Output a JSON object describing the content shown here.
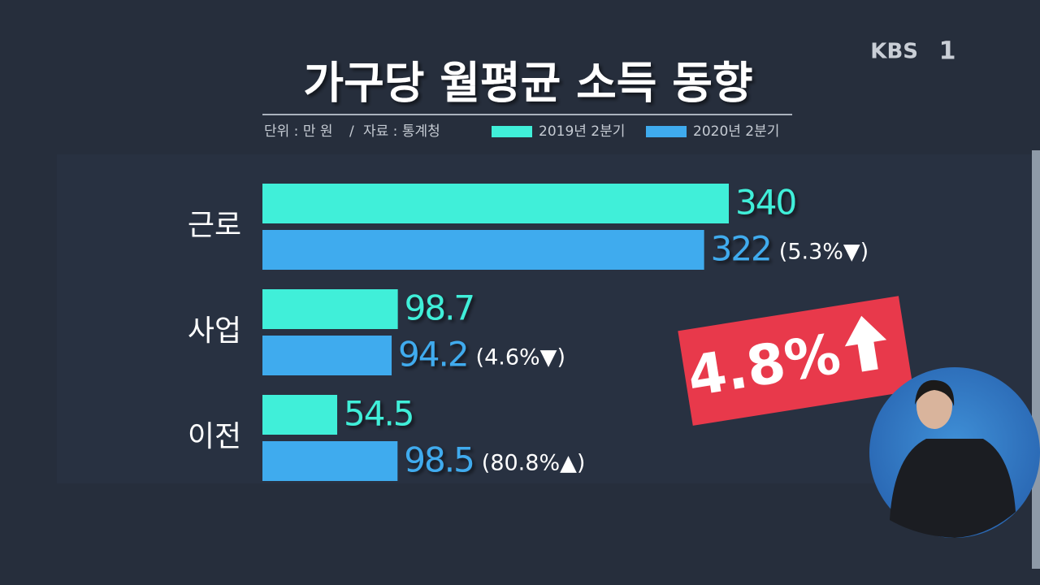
{
  "chart_data": {
    "type": "bar",
    "orientation": "horizontal",
    "title": "가구당 월평균 소득 동향",
    "unit": "단위 : 만 원",
    "source": "자료 : 통계청",
    "categories": [
      "근로",
      "사업",
      "이전"
    ],
    "series": [
      {
        "name": "2019년 2분기",
        "color": "#40efd9",
        "values": [
          340,
          98.7,
          54.5
        ]
      },
      {
        "name": "2020년 2분기",
        "color": "#3fabee",
        "values": [
          322,
          94.2,
          98.5
        ]
      }
    ],
    "annotations": [
      "(5.3%▼)",
      "(4.6%▼)",
      "(80.8%▲)"
    ],
    "highlight": "4.8%"
  },
  "channel": {
    "name": "KBS",
    "number": "1"
  }
}
